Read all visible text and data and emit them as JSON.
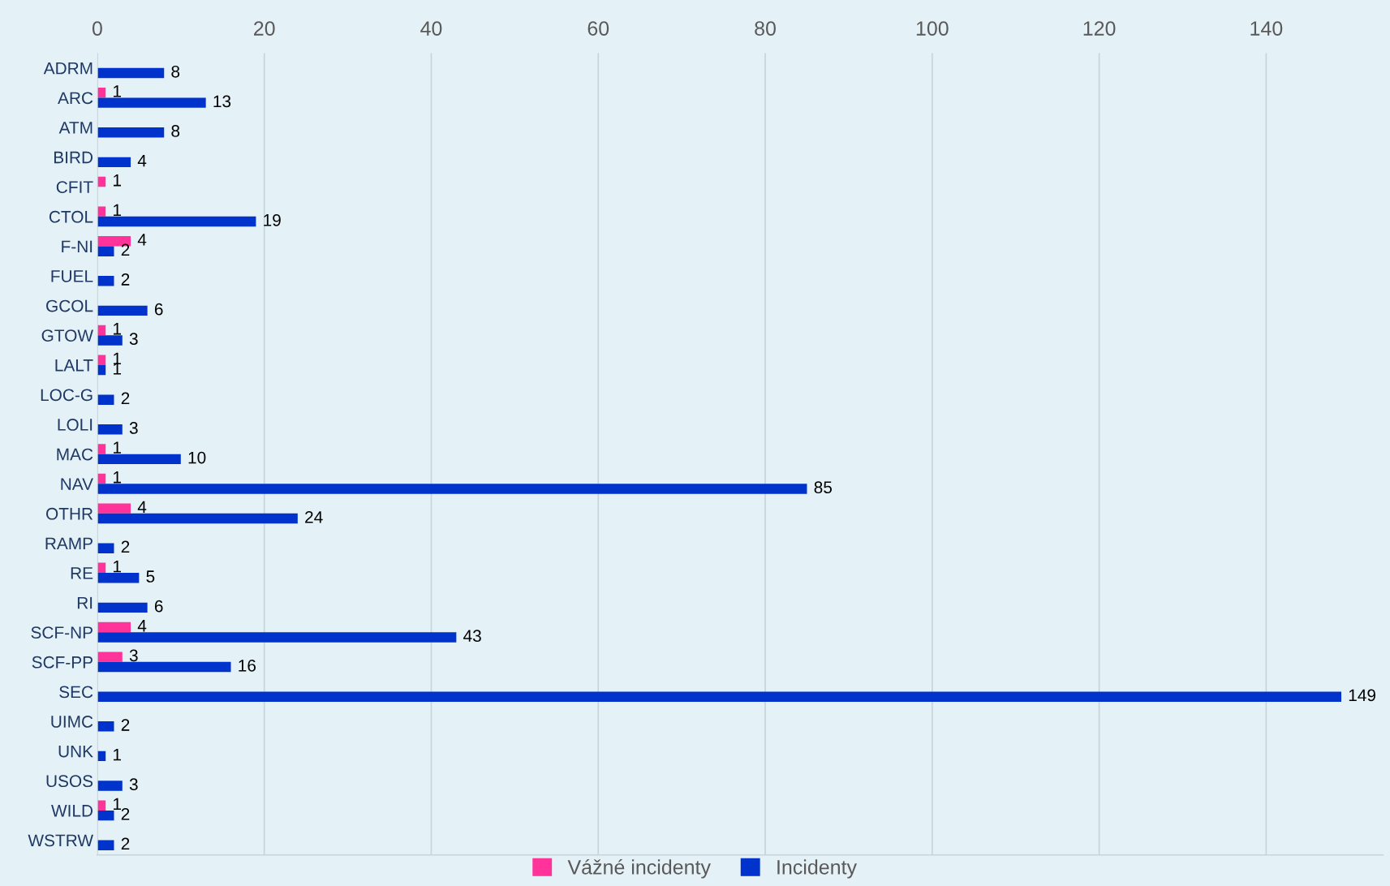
{
  "chart_data": {
    "type": "bar",
    "orientation": "horizontal",
    "categories": [
      "ADRM",
      "ARC",
      "ATM",
      "BIRD",
      "CFIT",
      "CTOL",
      "F-NI",
      "FUEL",
      "GCOL",
      "GTOW",
      "LALT",
      "LOC-G",
      "LOLI",
      "MAC",
      "NAV",
      "OTHR",
      "RAMP",
      "RE",
      "RI",
      "SCF-NP",
      "SCF-PP",
      "SEC",
      "UIMC",
      "UNK",
      "USOS",
      "WILD",
      "WSTRW"
    ],
    "series": [
      {
        "name": "Vážné incidenty",
        "color": "#ff3399",
        "values": [
          null,
          1,
          null,
          null,
          1,
          1,
          4,
          null,
          null,
          1,
          1,
          null,
          null,
          1,
          1,
          4,
          null,
          1,
          null,
          4,
          3,
          null,
          null,
          null,
          null,
          1,
          null
        ]
      },
      {
        "name": "Incidenty",
        "color": "#0033cc",
        "values": [
          8,
          13,
          8,
          4,
          null,
          19,
          2,
          2,
          6,
          3,
          1,
          2,
          3,
          10,
          85,
          24,
          2,
          5,
          6,
          43,
          16,
          149,
          2,
          1,
          3,
          2,
          2
        ]
      }
    ],
    "xlim": [
      0,
      154
    ],
    "xticks": [
      0,
      20,
      40,
      60,
      80,
      100,
      120,
      140
    ],
    "grid": "x",
    "legend": "bottom",
    "data_labels": true
  }
}
